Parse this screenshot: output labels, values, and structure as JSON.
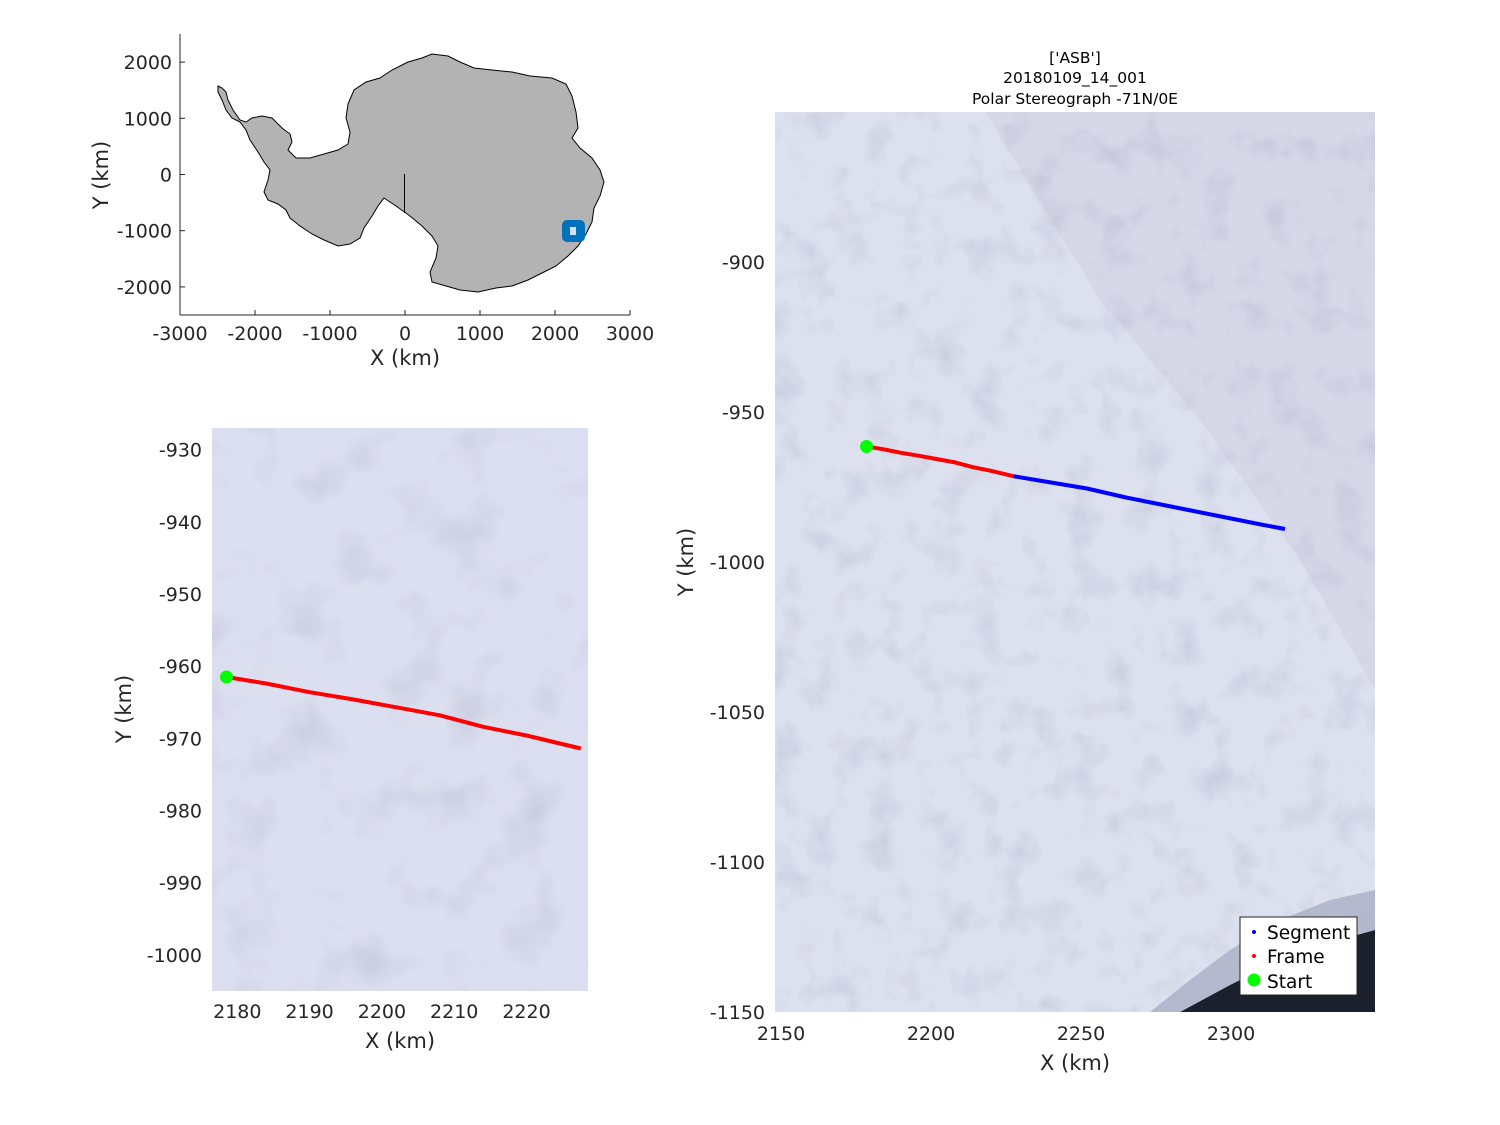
{
  "overview_map": {
    "xlabel": "X (km)",
    "ylabel": "Y (km)",
    "xlim": [
      -3000,
      3000
    ],
    "ylim": [
      -2500,
      2500
    ],
    "xticks": [
      "-3000",
      "-2000",
      "-1000",
      "0",
      "1000",
      "2000",
      "3000"
    ],
    "yticks": [
      "-2000",
      "-1000",
      "0",
      "1000",
      "2000"
    ],
    "land_color": "#b3b3b3",
    "marker_color": "#0072bd",
    "marker_center": [
      2250,
      -1000
    ]
  },
  "frame_map": {
    "xlabel": "X (km)",
    "ylabel": "Y (km)",
    "xlim": [
      2176.5,
      2228.5
    ],
    "ylim": [
      -1005,
      -927
    ],
    "xticks": [
      "2180",
      "2190",
      "2200",
      "2210",
      "2220"
    ],
    "yticks": [
      "-930",
      "-940",
      "-950",
      "-960",
      "-970",
      "-980",
      "-990",
      "-1000"
    ]
  },
  "segment_map": {
    "title_lines": [
      "['ASB']",
      "20180109_14_001",
      "Polar Stereograph -71N/0E"
    ],
    "xlabel": "X (km)",
    "ylabel": "Y (km)",
    "xlim": [
      2148,
      2348
    ],
    "ylim": [
      -1150,
      -850
    ],
    "xticks": [
      "2150",
      "2200",
      "2250",
      "2300"
    ],
    "yticks": [
      "-900",
      "-950",
      "-1000",
      "-1050",
      "-1100",
      "-1150"
    ],
    "legend": {
      "segment": "Segment",
      "frame": "Frame",
      "start": "Start"
    }
  },
  "colors": {
    "segment": "#0000ff",
    "frame": "#ff0000",
    "start": "#00ff00",
    "ice": "#dcdff0"
  },
  "chart_data": {
    "type": "line",
    "series": [
      {
        "name": "Frame",
        "x": [
          2178.5,
          2184,
          2190,
          2196,
          2202,
          2208,
          2214,
          2220,
          2227.5
        ],
        "y": [
          -961.5,
          -962.4,
          -963.6,
          -964.6,
          -965.7,
          -966.8,
          -968.4,
          -969.6,
          -971.4
        ]
      },
      {
        "name": "Segment",
        "x": [
          2227.5,
          2240,
          2252,
          2265,
          2280,
          2295,
          2310,
          2318
        ],
        "y": [
          -971.4,
          -973.5,
          -975.5,
          -978.5,
          -981.5,
          -984.5,
          -987.5,
          -989
        ]
      },
      {
        "name": "Start",
        "x": [
          2178.5
        ],
        "y": [
          -961.5
        ]
      }
    ]
  }
}
